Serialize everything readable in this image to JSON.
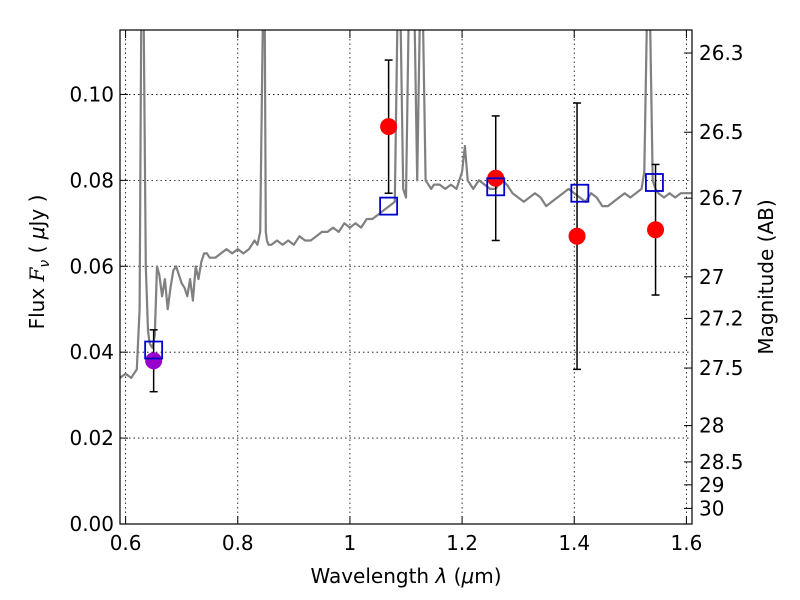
{
  "chart_data": {
    "type": "scatter",
    "title": "",
    "xlabel": "Wavelength  λ (μm)",
    "ylabel": "Flux  F_ν  ( μJy )",
    "ylabel_parts": {
      "pre": "Flux  ",
      "F": "F",
      "nu": "ν",
      "post": "  (  ",
      "mu": "μ",
      "unit": "Jy )"
    },
    "xlabel_parts": {
      "pre": "Wavelength  ",
      "lambda": "λ",
      "open": " (",
      "mu": "μ",
      "unit": "m)"
    },
    "y2label": "Magnitude (AB)",
    "xlim": [
      0.59,
      1.61
    ],
    "ylim": [
      0.0,
      0.115
    ],
    "grid": true,
    "x_ticks": [
      0.6,
      0.8,
      1.0,
      1.2,
      1.4,
      1.6
    ],
    "x_tick_labels": [
      "0.6",
      "0.8",
      "1",
      "1.2",
      "1.4",
      "1.6"
    ],
    "y_ticks": [
      0.0,
      0.02,
      0.04,
      0.06,
      0.08,
      0.1
    ],
    "y_tick_labels": [
      "0.00",
      "0.02",
      "0.04",
      "0.06",
      "0.08",
      "0.10"
    ],
    "y2_ticks": [
      26.3,
      26.5,
      26.7,
      27,
      27.2,
      27.5,
      28,
      28.5,
      29,
      30
    ],
    "y2_tick_labels": [
      "26.3",
      "26.5",
      "26.7",
      "27",
      "27.2",
      "27.5",
      "28",
      "28.5",
      "29",
      "30"
    ],
    "series": [
      {
        "kind": "line",
        "color": "#808080",
        "x": [
          0.59,
          0.6,
          0.61,
          0.62,
          0.625,
          0.628,
          0.632,
          0.636,
          0.64,
          0.643,
          0.648,
          0.652,
          0.656,
          0.66,
          0.665,
          0.67,
          0.675,
          0.68,
          0.685,
          0.69,
          0.695,
          0.7,
          0.705,
          0.71,
          0.715,
          0.72,
          0.725,
          0.73,
          0.735,
          0.74,
          0.745,
          0.75,
          0.76,
          0.77,
          0.78,
          0.79,
          0.8,
          0.81,
          0.82,
          0.83,
          0.835,
          0.84,
          0.845,
          0.848,
          0.85,
          0.852,
          0.855,
          0.86,
          0.87,
          0.88,
          0.89,
          0.9,
          0.91,
          0.92,
          0.93,
          0.94,
          0.95,
          0.96,
          0.97,
          0.98,
          0.99,
          1.0,
          1.01,
          1.02,
          1.03,
          1.04,
          1.05,
          1.06,
          1.07,
          1.08,
          1.085,
          1.09,
          1.095,
          1.1,
          1.105,
          1.11,
          1.115,
          1.12,
          1.125,
          1.13,
          1.135,
          1.14,
          1.145,
          1.15,
          1.16,
          1.17,
          1.18,
          1.19,
          1.2,
          1.205,
          1.21,
          1.215,
          1.22,
          1.23,
          1.24,
          1.25,
          1.26,
          1.27,
          1.28,
          1.29,
          1.3,
          1.31,
          1.32,
          1.33,
          1.34,
          1.35,
          1.36,
          1.37,
          1.38,
          1.39,
          1.4,
          1.41,
          1.42,
          1.43,
          1.44,
          1.45,
          1.46,
          1.47,
          1.48,
          1.49,
          1.5,
          1.51,
          1.52,
          1.525,
          1.53,
          1.535,
          1.54,
          1.545,
          1.55,
          1.56,
          1.57,
          1.58,
          1.59,
          1.6,
          1.61
        ],
        "y": [
          0.034,
          0.035,
          0.034,
          0.036,
          0.05,
          0.12,
          0.12,
          0.06,
          0.045,
          0.042,
          0.041,
          0.044,
          0.06,
          0.058,
          0.053,
          0.057,
          0.05,
          0.055,
          0.059,
          0.06,
          0.058,
          0.056,
          0.055,
          0.053,
          0.057,
          0.052,
          0.06,
          0.057,
          0.061,
          0.063,
          0.063,
          0.062,
          0.062,
          0.063,
          0.064,
          0.063,
          0.064,
          0.063,
          0.064,
          0.066,
          0.065,
          0.068,
          0.12,
          0.12,
          0.068,
          0.066,
          0.065,
          0.065,
          0.066,
          0.065,
          0.066,
          0.065,
          0.067,
          0.066,
          0.066,
          0.067,
          0.068,
          0.068,
          0.069,
          0.068,
          0.07,
          0.069,
          0.07,
          0.069,
          0.071,
          0.071,
          0.072,
          0.073,
          0.074,
          0.075,
          0.12,
          0.12,
          0.078,
          0.076,
          0.12,
          0.12,
          0.12,
          0.08,
          0.12,
          0.12,
          0.08,
          0.079,
          0.078,
          0.079,
          0.079,
          0.078,
          0.079,
          0.078,
          0.082,
          0.088,
          0.08,
          0.079,
          0.078,
          0.08,
          0.079,
          0.078,
          0.078,
          0.08,
          0.079,
          0.077,
          0.076,
          0.075,
          0.076,
          0.077,
          0.076,
          0.074,
          0.075,
          0.076,
          0.077,
          0.078,
          0.077,
          0.076,
          0.075,
          0.077,
          0.076,
          0.074,
          0.074,
          0.075,
          0.076,
          0.077,
          0.076,
          0.077,
          0.078,
          0.082,
          0.12,
          0.12,
          0.08,
          0.078,
          0.077,
          0.076,
          0.077,
          0.076,
          0.077,
          0.077,
          0.077
        ]
      },
      {
        "kind": "points",
        "marker": "filled-circle",
        "color": "#ff0000",
        "x": [
          1.069,
          1.26,
          1.405,
          1.545
        ],
        "y": [
          0.0925,
          0.0805,
          0.067,
          0.0685
        ],
        "yerr": [
          0.0155,
          0.0145,
          0.031,
          0.0152
        ]
      },
      {
        "kind": "points",
        "marker": "filled-circle",
        "color": "#9900cc",
        "x": [
          0.65
        ],
        "y": [
          0.038
        ],
        "yerr": [
          0.0072
        ]
      },
      {
        "kind": "points",
        "marker": "open-square",
        "color": "#0000cc",
        "x": [
          0.65,
          1.069,
          1.26,
          1.41,
          1.543
        ],
        "y": [
          0.0405,
          0.074,
          0.0785,
          0.077,
          0.0795
        ]
      }
    ]
  }
}
